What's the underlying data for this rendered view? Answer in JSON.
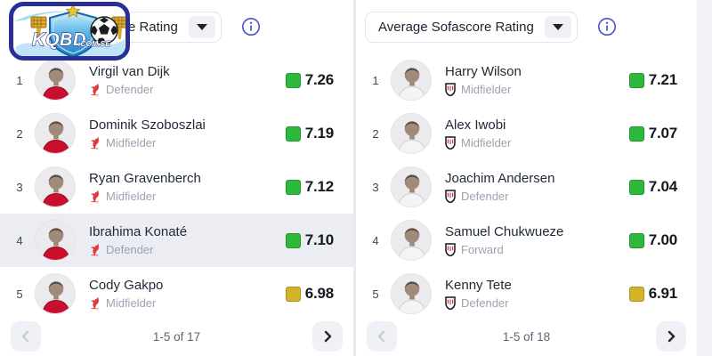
{
  "colors": {
    "page_bg": "#f1f2f7",
    "panel_bg": "#ffffff",
    "divider": "#e8eaf0",
    "row_highlight": "#ebedf3",
    "rating_green": "#2db93c",
    "rating_yellow": "#d5b327",
    "info_accent": "#4a52c4",
    "liverpool_red": "#e13a3c",
    "fulham_red": "#c8313a",
    "fulham_black": "#15161a"
  },
  "logo": {
    "text_main": "KQBD",
    "text_suffix": ".COM.SE"
  },
  "panels": [
    {
      "header": {
        "dropdown_label": "Average Sofascore Rating"
      },
      "team_badge": "liverpool",
      "rows": [
        {
          "rank": "1",
          "name": "Virgil van Dijk",
          "position": "Defender",
          "rating": "7.26",
          "rating_color": "green",
          "highlighted": false
        },
        {
          "rank": "2",
          "name": "Dominik Szoboszlai",
          "position": "Midfielder",
          "rating": "7.19",
          "rating_color": "green",
          "highlighted": false
        },
        {
          "rank": "3",
          "name": "Ryan Gravenberch",
          "position": "Midfielder",
          "rating": "7.12",
          "rating_color": "green",
          "highlighted": false
        },
        {
          "rank": "4",
          "name": "Ibrahima Konaté",
          "position": "Defender",
          "rating": "7.10",
          "rating_color": "green",
          "highlighted": true
        },
        {
          "rank": "5",
          "name": "Cody Gakpo",
          "position": "Midfielder",
          "rating": "6.98",
          "rating_color": "yellow",
          "highlighted": false
        }
      ],
      "pagination": {
        "label": "1-5 of 17",
        "prev_enabled": false,
        "next_enabled": true
      }
    },
    {
      "header": {
        "dropdown_label": "Average Sofascore Rating"
      },
      "team_badge": "fulham",
      "rows": [
        {
          "rank": "1",
          "name": "Harry Wilson",
          "position": "Midfielder",
          "rating": "7.21",
          "rating_color": "green",
          "highlighted": false
        },
        {
          "rank": "2",
          "name": "Alex Iwobi",
          "position": "Midfielder",
          "rating": "7.07",
          "rating_color": "green",
          "highlighted": false
        },
        {
          "rank": "3",
          "name": "Joachim Andersen",
          "position": "Defender",
          "rating": "7.04",
          "rating_color": "green",
          "highlighted": false
        },
        {
          "rank": "4",
          "name": "Samuel Chukwueze",
          "position": "Forward",
          "rating": "7.00",
          "rating_color": "green",
          "highlighted": false
        },
        {
          "rank": "5",
          "name": "Kenny Tete",
          "position": "Defender",
          "rating": "6.91",
          "rating_color": "yellow",
          "highlighted": false
        }
      ],
      "pagination": {
        "label": "1-5 of 18",
        "prev_enabled": false,
        "next_enabled": true
      }
    }
  ]
}
